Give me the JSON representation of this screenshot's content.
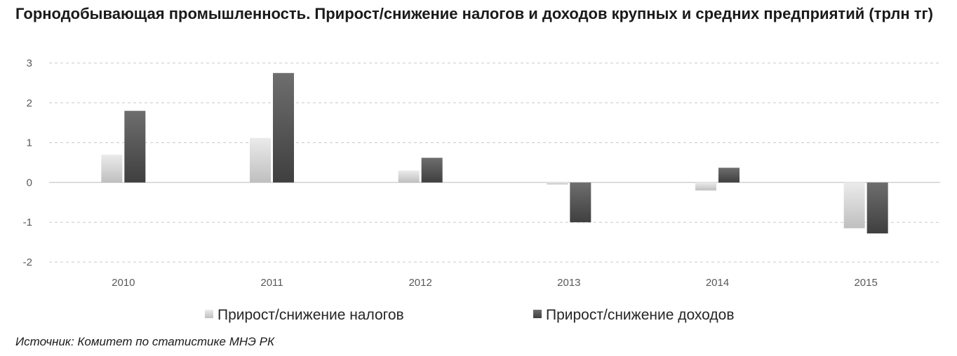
{
  "chart_data": {
    "type": "bar",
    "title": "Горнодобывающая промышленность.  Прирост/снижение налогов и доходов крупных и средних предприятий (трлн тг)",
    "categories": [
      "2010",
      "2011",
      "2012",
      "2013",
      "2014",
      "2015"
    ],
    "series": [
      {
        "name": "Прирост/снижение налогов",
        "values": [
          0.7,
          1.12,
          0.3,
          -0.05,
          -0.2,
          -1.15
        ],
        "color": "#d9d9d9"
      },
      {
        "name": "Прирост/снижение доходов",
        "values": [
          1.8,
          2.75,
          0.62,
          -1.0,
          0.37,
          -1.28
        ],
        "color": "#595959"
      }
    ],
    "ylim": [
      -2,
      3
    ],
    "yticks": [
      "-2",
      "-1",
      "0",
      "1",
      "2",
      "3"
    ],
    "grid": true,
    "legend": "bottom"
  },
  "source": "Источник: Комитет по статистике МНЭ РК"
}
